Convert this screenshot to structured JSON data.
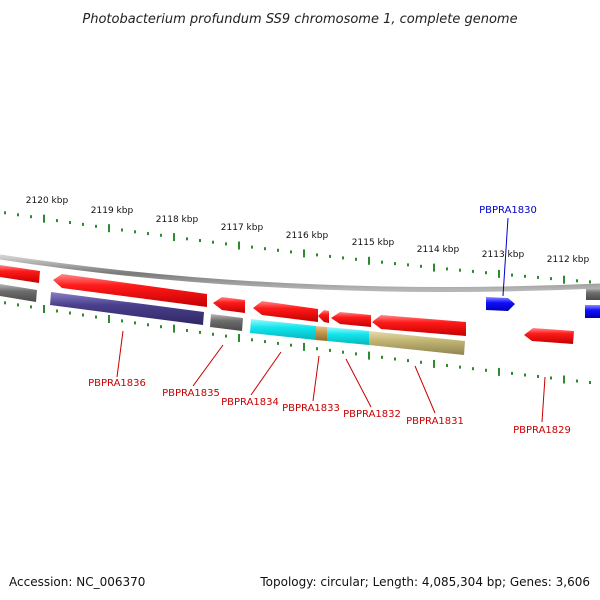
{
  "title": "Photobacterium profundum SS9 chromosome 1, complete genome",
  "footer": {
    "accession": "Accession: NC_006370",
    "summary": "Topology: circular; Length: 4,085,304 bp; Genes: 3,606"
  },
  "colors": {
    "backbone": "#8a8a8a",
    "tick": "#2f8a2f",
    "red": "#ff1010",
    "grey": "#6f6f6f",
    "navy": "#4a3f8c",
    "cyan": "#12e6ee",
    "olive": "#c2b574",
    "blue": "#1010ff",
    "label_red": "#c80000",
    "label_blue": "#0000c8"
  },
  "tick_labels": [
    "2120 kbp",
    "2119 kbp",
    "2118 kbp",
    "2117 kbp",
    "2116 kbp",
    "2115 kbp",
    "2114 kbp",
    "2113 kbp",
    "2112 kbp"
  ],
  "gene_labels": {
    "PBPRA1830": "PBPRA1830",
    "PBPRA1836": "PBPRA1836",
    "PBPRA1835": "PBPRA1835",
    "PBPRA1834": "PBPRA1834",
    "PBPRA1833": "PBPRA1833",
    "PBPRA1832": "PBPRA1832",
    "PBPRA1831": "PBPRA1831",
    "PBPRA1829": "PBPRA1829"
  }
}
